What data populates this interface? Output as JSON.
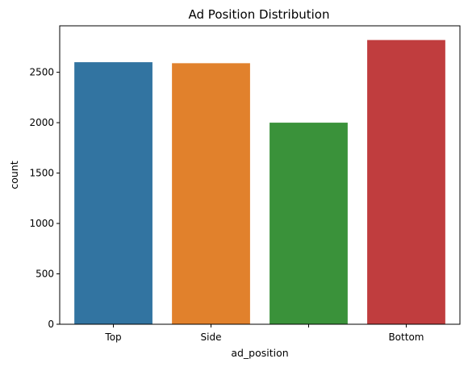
{
  "chart_data": {
    "type": "bar",
    "title": "Ad Position Distribution",
    "xlabel": "ad_position",
    "ylabel": "count",
    "categories": [
      "Top",
      "Side",
      "",
      "Bottom"
    ],
    "values": [
      2600,
      2590,
      2000,
      2820
    ],
    "colors": [
      "#3274a1",
      "#e1812c",
      "#3a923a",
      "#c03d3e"
    ],
    "ylim": [
      0,
      2961
    ],
    "yticks": [
      0,
      500,
      1000,
      1500,
      2000,
      2500
    ],
    "ytick_labels": [
      "0",
      "500",
      "1000",
      "1500",
      "2000",
      "2500"
    ],
    "grid": false,
    "legend": "none"
  }
}
